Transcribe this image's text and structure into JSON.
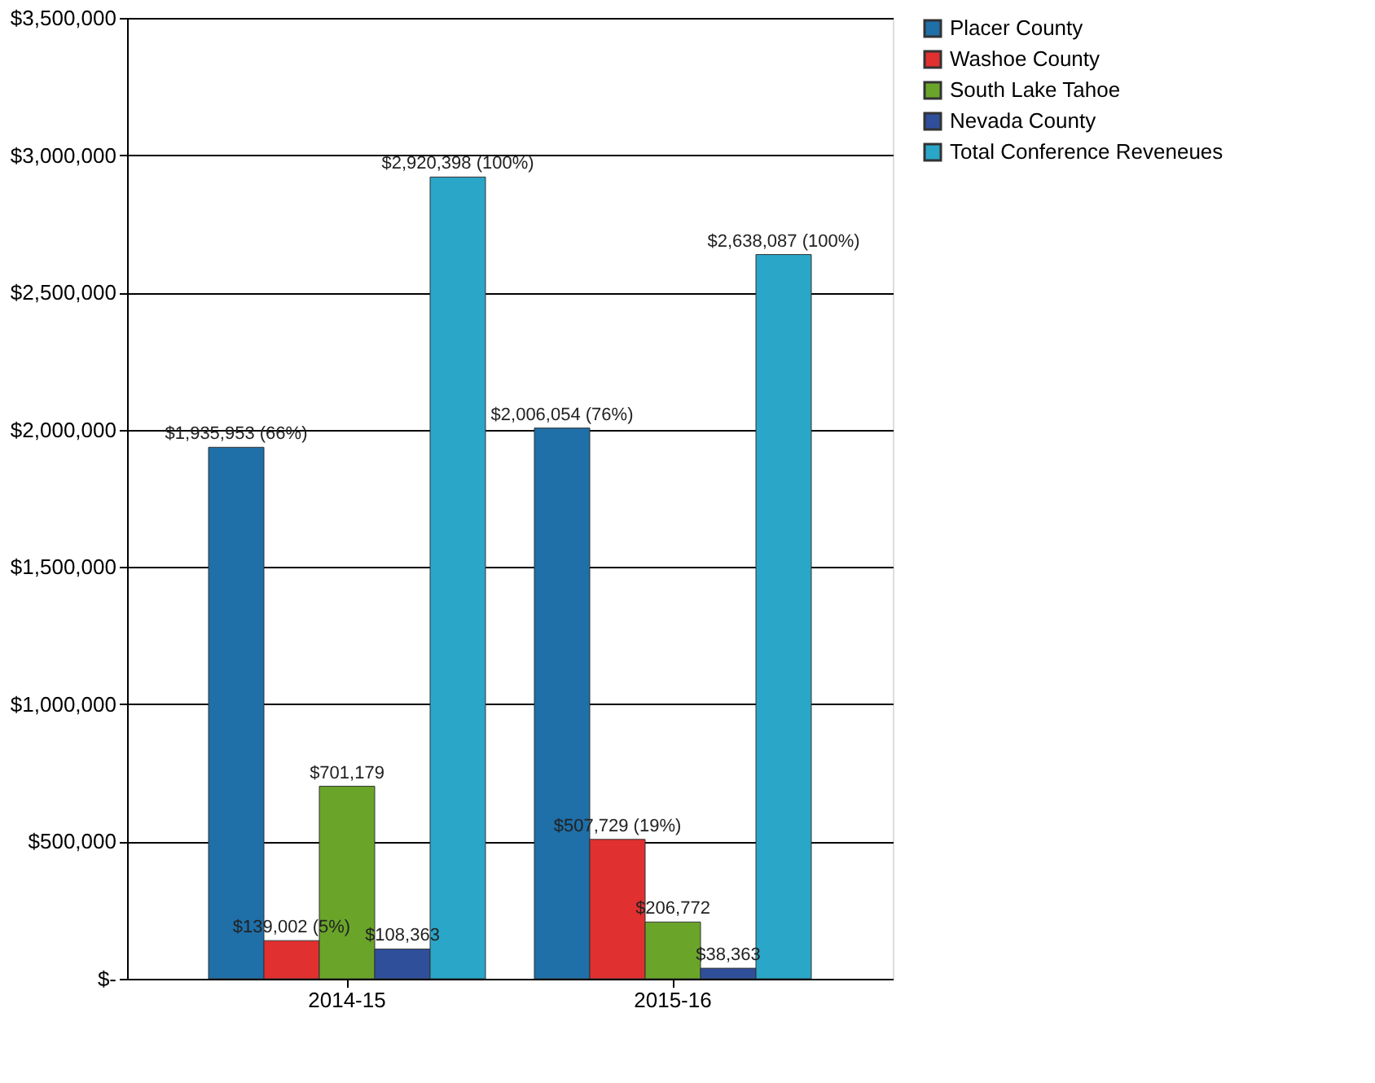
{
  "chart_data": {
    "type": "bar",
    "categories": [
      "2014-15",
      "2015-16"
    ],
    "series": [
      {
        "name": "Placer County",
        "color": "#1f6fa8",
        "values": [
          1935953,
          2006054
        ],
        "value_labels": [
          "$1,935,953 (66%)",
          "$2,006,054 (76%)"
        ]
      },
      {
        "name": "Washoe County",
        "color": "#e03030",
        "values": [
          139002,
          507729
        ],
        "value_labels": [
          "$139,002 (5%)",
          "$507,729 (19%)"
        ]
      },
      {
        "name": "South Lake Tahoe",
        "color": "#6aa52a",
        "values": [
          701179,
          206772
        ],
        "value_labels": [
          "$701,179",
          "$206,772"
        ]
      },
      {
        "name": "Nevada County",
        "color": "#2f4f9a",
        "values": [
          108363,
          38363
        ],
        "value_labels": [
          "$108,363",
          "$38,363"
        ]
      },
      {
        "name": "Total Conference Reveneues",
        "color": "#2aa6c8",
        "values": [
          2920398,
          2638087
        ],
        "value_labels": [
          "$2,920,398 (100%)",
          "$2,638,087 (100%)"
        ]
      }
    ],
    "ylim": [
      0,
      3500000
    ],
    "yticks": [
      {
        "value": 0,
        "label": "$-"
      },
      {
        "value": 500000,
        "label": "$500,000"
      },
      {
        "value": 1000000,
        "label": "$1,000,000"
      },
      {
        "value": 1500000,
        "label": "$1,500,000"
      },
      {
        "value": 2000000,
        "label": "$2,000,000"
      },
      {
        "value": 2500000,
        "label": "$2,500,000"
      },
      {
        "value": 3000000,
        "label": "$3,000,000"
      },
      {
        "value": 3500000,
        "label": "$3,500,000"
      }
    ],
    "grid": "y",
    "legend": "right"
  }
}
